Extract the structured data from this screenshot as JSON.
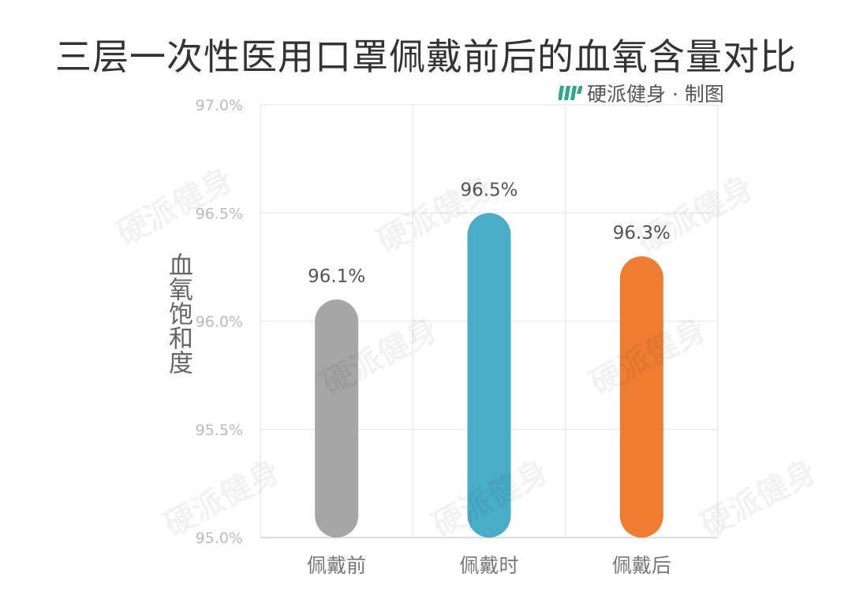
{
  "title": "三层一次性医用口罩佩戴前后的血氧含量对比",
  "credit": "硬派健身 · 制图",
  "watermark": "硬派健身",
  "chart_data": {
    "type": "bar",
    "categories": [
      "佩戴前",
      "佩戴时",
      "佩戴后"
    ],
    "values": [
      96.1,
      96.5,
      96.3
    ],
    "data_labels": [
      "96.1%",
      "96.5%",
      "96.3%"
    ],
    "colors": [
      "#a6a6a6",
      "#4aadc7",
      "#ee7d31"
    ],
    "ylabel": "血氧饱和度",
    "ylim": [
      95.0,
      97.0
    ],
    "yticks": [
      95.0,
      95.5,
      96.0,
      96.5,
      97.0
    ],
    "ytick_labels": [
      "95.0%",
      "95.5%",
      "96.0%",
      "96.5%",
      "97.0%"
    ],
    "grid": true
  }
}
